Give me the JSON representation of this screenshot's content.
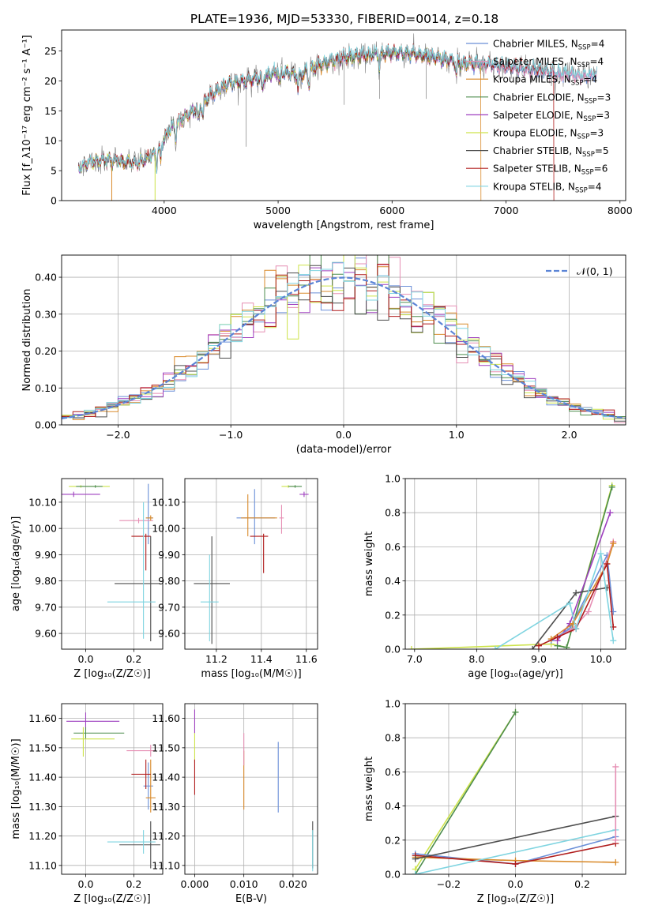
{
  "title": "PLATE=1936, MJD=53330, FIBERID=0014, z=0.18",
  "colors": {
    "Chabrier MILES": "#6a8fd8",
    "Salpeter MILES": "#e68fb4",
    "Kroupa MILES": "#d98a2a",
    "Chabrier ELODIE": "#4c8c4c",
    "Salpeter ELODIE": "#9e3fbf",
    "Kroupa ELODIE": "#cde34a",
    "Chabrier STELIB": "#4d4d4d",
    "Salpeter STELIB": "#b01c1c",
    "Kroupa STELIB": "#7fd4e0",
    "data": "#808080",
    "normal": "#5b84d6"
  },
  "legend_models": [
    {
      "name": "Chabrier MILES",
      "nssp": "4"
    },
    {
      "name": "Salpeter MILES",
      "nssp": "4"
    },
    {
      "name": "Kroupa MILES",
      "nssp": "4"
    },
    {
      "name": "Chabrier ELODIE",
      "nssp": "3"
    },
    {
      "name": "Salpeter ELODIE",
      "nssp": "3"
    },
    {
      "name": "Kroupa ELODIE",
      "nssp": "3"
    },
    {
      "name": "Chabrier STELIB",
      "nssp": "5"
    },
    {
      "name": "Salpeter STELIB",
      "nssp": "6"
    },
    {
      "name": "Kroupa STELIB",
      "nssp": "4"
    }
  ],
  "chart_data": [
    {
      "id": "spectrum",
      "type": "line",
      "xlabel": "wavelength [Angstrom, rest frame]",
      "ylabel": "Flux [f_λ10⁻¹⁷ erg cm⁻² s⁻¹ A⁻¹]",
      "xlim": [
        3100,
        8050
      ],
      "ylim": [
        0,
        28.5
      ],
      "xticks": [
        4000,
        5000,
        6000,
        7000,
        8000
      ],
      "yticks": [
        0,
        5,
        10,
        15,
        20,
        25
      ],
      "continuum": [
        [
          3250,
          5.5
        ],
        [
          3350,
          6.5
        ],
        [
          3500,
          6.8
        ],
        [
          3650,
          6.5
        ],
        [
          3750,
          6.2
        ],
        [
          3850,
          7.0
        ],
        [
          3950,
          8.5
        ],
        [
          4050,
          12.0
        ],
        [
          4150,
          13.5
        ],
        [
          4300,
          15.5
        ],
        [
          4400,
          17.5
        ],
        [
          4550,
          19.5
        ],
        [
          4700,
          20.0
        ],
        [
          4850,
          20.5
        ],
        [
          5000,
          21.5
        ],
        [
          5200,
          21.0
        ],
        [
          5400,
          23.0
        ],
        [
          5600,
          24.0
        ],
        [
          5800,
          24.3
        ],
        [
          6000,
          24.8
        ],
        [
          6200,
          24.5
        ],
        [
          6400,
          23.8
        ],
        [
          6600,
          23.0
        ],
        [
          6800,
          22.8
        ],
        [
          7000,
          22.5
        ],
        [
          7200,
          22.0
        ],
        [
          7400,
          21.5
        ],
        [
          7600,
          21.0
        ],
        [
          7800,
          21.0
        ]
      ],
      "legend": "top-right"
    },
    {
      "id": "residuals",
      "type": "line",
      "xlabel": "(data-model)/error",
      "ylabel": "Normed distribution",
      "xlim": [
        -2.5,
        2.5
      ],
      "ylim": [
        0,
        0.46
      ],
      "xticks": [
        -2,
        -1,
        0,
        1,
        2
      ],
      "yticks": [
        0.0,
        0.1,
        0.2,
        0.3,
        0.4
      ],
      "legend_label": "𝒩(0, 1)",
      "histogram_bins": [
        -2.5,
        2.5,
        50
      ]
    },
    {
      "id": "age_vs_Z",
      "type": "scatter",
      "xlabel": "Z [log₁₀(Z/Z☉)]",
      "ylabel": "age  [log₁₀(age/yr)]",
      "xlim": [
        -0.1,
        0.32
      ],
      "ylim": [
        9.54,
        10.19
      ],
      "xticks": [
        0.0,
        0.2
      ],
      "yticks": [
        9.6,
        9.7,
        9.8,
        9.9,
        10.0,
        10.1
      ],
      "points": [
        {
          "model": "Salpeter ELODIE",
          "x": -0.05,
          "y": 10.13,
          "xerr": [
            0.12,
            0.11
          ],
          "yerr": [
            0.01,
            0.01
          ]
        },
        {
          "model": "Kroupa ELODIE",
          "x": -0.02,
          "y": 10.16,
          "xerr": [
            0.05,
            0.12
          ],
          "yerr": [
            0.005,
            0.005
          ]
        },
        {
          "model": "Chabrier ELODIE",
          "x": 0.04,
          "y": 10.16,
          "xerr": [
            0.08,
            0.03
          ],
          "yerr": [
            0.005,
            0.005
          ]
        },
        {
          "model": "Chabrier MILES",
          "x": 0.26,
          "y": 10.04,
          "xerr": [
            0.01,
            0.02
          ],
          "yerr": [
            0.1,
            0.13
          ]
        },
        {
          "model": "Salpeter MILES",
          "x": 0.22,
          "y": 10.03,
          "xerr": [
            0.08,
            0.06
          ],
          "yerr": [
            0.01,
            0.01
          ]
        },
        {
          "model": "Kroupa MILES",
          "x": 0.27,
          "y": 10.04,
          "xerr": [
            0.02,
            0.01
          ],
          "yerr": [
            0.01,
            0.01
          ]
        },
        {
          "model": "Salpeter STELIB",
          "x": 0.25,
          "y": 9.97,
          "xerr": [
            0.06,
            0.02
          ],
          "yerr": [
            0.13,
            0.01
          ]
        },
        {
          "model": "Chabrier STELIB",
          "x": 0.27,
          "y": 9.79,
          "xerr": [
            0.15,
            0.04
          ],
          "yerr": [
            0.22,
            0.18
          ]
        },
        {
          "model": "Kroupa STELIB",
          "x": 0.24,
          "y": 9.72,
          "xerr": [
            0.15,
            0.05
          ],
          "yerr": [
            0.14,
            0.38
          ]
        }
      ]
    },
    {
      "id": "age_vs_mass",
      "type": "scatter",
      "xlabel": "mass [log₁₀(M/M☉)]",
      "ylabel": "",
      "xlim": [
        11.06,
        11.65
      ],
      "ylim": [
        9.54,
        10.19
      ],
      "xticks": [
        11.2,
        11.4,
        11.6
      ],
      "yticks": [
        9.6,
        9.7,
        9.8,
        9.9,
        10.0,
        10.1
      ],
      "points": [
        {
          "model": "Salpeter ELODIE",
          "x": 11.59,
          "y": 10.13,
          "xerr": [
            0.02,
            0.02
          ],
          "yerr": [
            0.01,
            0.01
          ]
        },
        {
          "model": "Kroupa ELODIE",
          "x": 11.52,
          "y": 10.16,
          "xerr": [
            0.03,
            0.03
          ],
          "yerr": [
            0.005,
            0.005
          ]
        },
        {
          "model": "Chabrier ELODIE",
          "x": 11.55,
          "y": 10.16,
          "xerr": [
            0.03,
            0.03
          ],
          "yerr": [
            0.005,
            0.005
          ]
        },
        {
          "model": "Chabrier MILES",
          "x": 11.37,
          "y": 10.04,
          "xerr": [
            0.08,
            0.09
          ],
          "yerr": [
            0.1,
            0.11
          ]
        },
        {
          "model": "Salpeter MILES",
          "x": 11.49,
          "y": 10.04,
          "xerr": [
            0.01,
            0.01
          ],
          "yerr": [
            0.06,
            0.05
          ]
        },
        {
          "model": "Kroupa MILES",
          "x": 11.34,
          "y": 10.04,
          "xerr": [
            0.03,
            0.13
          ],
          "yerr": [
            0.07,
            0.09
          ]
        },
        {
          "model": "Salpeter STELIB",
          "x": 11.41,
          "y": 9.97,
          "xerr": [
            0.06,
            0.02
          ],
          "yerr": [
            0.14,
            0.01
          ]
        },
        {
          "model": "Chabrier STELIB",
          "x": 11.18,
          "y": 9.79,
          "xerr": [
            0.08,
            0.08
          ],
          "yerr": [
            0.23,
            0.18
          ]
        },
        {
          "model": "Kroupa STELIB",
          "x": 11.17,
          "y": 9.72,
          "xerr": [
            0.04,
            0.04
          ],
          "yerr": [
            0.15,
            0.18
          ]
        }
      ]
    },
    {
      "id": "weight_vs_age",
      "type": "line",
      "xlabel": "age  [log₁₀(age/yr)]",
      "ylabel": "mass weight",
      "xlim": [
        6.85,
        10.4
      ],
      "ylim": [
        0,
        1.0
      ],
      "xticks": [
        7,
        8,
        9,
        10
      ],
      "yticks": [
        0.0,
        0.2,
        0.4,
        0.6,
        0.8,
        1.0
      ],
      "series": [
        {
          "model": "Kroupa ELODIE",
          "x": [
            6.95,
            9.2,
            9.45,
            10.18
          ],
          "y": [
            0.0,
            0.03,
            0.01,
            0.96
          ]
        },
        {
          "model": "Chabrier ELODIE",
          "x": [
            9.3,
            9.45,
            10.18
          ],
          "y": [
            0.02,
            0.01,
            0.95
          ]
        },
        {
          "model": "Salpeter ELODIE",
          "x": [
            9.3,
            9.5,
            10.15
          ],
          "y": [
            0.05,
            0.15,
            0.8
          ]
        },
        {
          "model": "Chabrier MILES",
          "x": [
            9.2,
            9.5,
            10.1,
            10.2
          ],
          "y": [
            0.05,
            0.12,
            0.55,
            0.22
          ]
        },
        {
          "model": "Salpeter MILES",
          "x": [
            9.3,
            9.55,
            9.8,
            10.2
          ],
          "y": [
            0.07,
            0.12,
            0.22,
            0.63
          ]
        },
        {
          "model": "Kroupa MILES",
          "x": [
            9.2,
            9.55,
            10.1,
            10.2
          ],
          "y": [
            0.06,
            0.15,
            0.5,
            0.62
          ]
        },
        {
          "model": "Chabrier STELIB",
          "x": [
            8.9,
            9.6,
            10.1
          ],
          "y": [
            0.0,
            0.33,
            0.36
          ]
        },
        {
          "model": "Salpeter STELIB",
          "x": [
            9.0,
            9.3,
            9.6,
            10.1,
            10.2
          ],
          "y": [
            0.02,
            0.07,
            0.12,
            0.5,
            0.13
          ]
        },
        {
          "model": "Kroupa STELIB",
          "x": [
            8.3,
            9.5,
            9.6,
            10.0,
            10.2
          ],
          "y": [
            0.0,
            0.27,
            0.12,
            0.56,
            0.05
          ]
        }
      ]
    },
    {
      "id": "mass_vs_Z",
      "type": "scatter",
      "xlabel": "Z [log₁₀(Z/Z☉)]",
      "ylabel": "mass [log₁₀(M/M☉)]",
      "xlim": [
        -0.1,
        0.32
      ],
      "ylim": [
        11.07,
        11.65
      ],
      "xticks": [
        0.0,
        0.2
      ],
      "yticks": [
        11.1,
        11.2,
        11.3,
        11.4,
        11.5,
        11.6
      ],
      "points": [
        {
          "model": "Salpeter ELODIE",
          "x": 0.0,
          "y": 11.59,
          "xerr": [
            0.08,
            0.14
          ],
          "yerr": [
            0.03,
            0.03
          ]
        },
        {
          "model": "Chabrier ELODIE",
          "x": 0.0,
          "y": 11.55,
          "xerr": [
            0.05,
            0.16
          ],
          "yerr": [
            0.02,
            0.02
          ]
        },
        {
          "model": "Kroupa ELODIE",
          "x": -0.01,
          "y": 11.53,
          "xerr": [
            0.05,
            0.13
          ],
          "yerr": [
            0.06,
            0.04
          ]
        },
        {
          "model": "Salpeter MILES",
          "x": 0.27,
          "y": 11.49,
          "xerr": [
            0.1,
            0.02
          ],
          "yerr": [
            0.02,
            0.02
          ]
        },
        {
          "model": "Chabrier MILES",
          "x": 0.26,
          "y": 11.37,
          "xerr": [
            0.02,
            0.02
          ],
          "yerr": [
            0.08,
            0.08
          ]
        },
        {
          "model": "Kroupa MILES",
          "x": 0.27,
          "y": 11.33,
          "xerr": [
            0.02,
            0.02
          ],
          "yerr": [
            0.05,
            0.13
          ]
        },
        {
          "model": "Salpeter STELIB",
          "x": 0.25,
          "y": 11.41,
          "xerr": [
            0.06,
            0.02
          ],
          "yerr": [
            0.05,
            0.05
          ]
        },
        {
          "model": "Chabrier STELIB",
          "x": 0.27,
          "y": 11.17,
          "xerr": [
            0.13,
            0.04
          ],
          "yerr": [
            0.08,
            0.08
          ]
        },
        {
          "model": "Kroupa STELIB",
          "x": 0.24,
          "y": 11.18,
          "xerr": [
            0.15,
            0.05
          ],
          "yerr": [
            0.04,
            0.04
          ]
        }
      ]
    },
    {
      "id": "mass_vs_EBV",
      "type": "scatter",
      "xlabel": "E(B-V)",
      "ylabel": "",
      "xlim": [
        -0.002,
        0.025
      ],
      "ylim": [
        11.07,
        11.65
      ],
      "xticks": [
        0.0,
        0.01,
        0.02
      ],
      "yticks": [
        11.1,
        11.2,
        11.3,
        11.4,
        11.5,
        11.6
      ],
      "points": [
        {
          "model": "Salpeter ELODIE",
          "x": 0.0,
          "y": 11.59,
          "xerr": [
            0,
            0
          ],
          "yerr": [
            0.04,
            0.04
          ]
        },
        {
          "model": "Kroupa ELODIE",
          "x": 0.0,
          "y": 11.5,
          "xerr": [
            0,
            0
          ],
          "yerr": [
            0.05,
            0.05
          ]
        },
        {
          "model": "Salpeter STELIB",
          "x": 0.0,
          "y": 11.39,
          "xerr": [
            0,
            0
          ],
          "yerr": [
            0.05,
            0.07
          ]
        },
        {
          "model": "Kroupa MILES",
          "x": 0.01,
          "y": 11.39,
          "xerr": [
            0,
            0
          ],
          "yerr": [
            0.1,
            0.1
          ]
        },
        {
          "model": "Salpeter MILES",
          "x": 0.01,
          "y": 11.5,
          "xerr": [
            0,
            0
          ],
          "yerr": [
            0.06,
            0.05
          ]
        },
        {
          "model": "Chabrier MILES",
          "x": 0.017,
          "y": 11.4,
          "xerr": [
            0,
            0
          ],
          "yerr": [
            0.12,
            0.12
          ]
        },
        {
          "model": "Chabrier STELIB",
          "x": 0.024,
          "y": 11.17,
          "xerr": [
            0,
            0
          ],
          "yerr": [
            0.08,
            0.08
          ]
        },
        {
          "model": "Kroupa STELIB",
          "x": 0.024,
          "y": 11.15,
          "xerr": [
            0,
            0
          ],
          "yerr": [
            0.07,
            0.07
          ]
        }
      ]
    },
    {
      "id": "weight_vs_Z",
      "type": "line",
      "xlabel": "Z [log₁₀(Z/Z☉)]",
      "ylabel": "mass weight",
      "xlim": [
        -0.33,
        0.33
      ],
      "ylim": [
        0,
        1.0
      ],
      "xticks": [
        -0.2,
        0.0,
        0.2
      ],
      "yticks": [
        0.0,
        0.2,
        0.4,
        0.6,
        0.8,
        1.0
      ],
      "series": [
        {
          "model": "Kroupa ELODIE",
          "x": [
            -0.3,
            0.0
          ],
          "y": [
            0.03,
            0.95
          ]
        },
        {
          "model": "Chabrier ELODIE",
          "x": [
            -0.3,
            0.0
          ],
          "y": [
            0.0,
            0.95
          ]
        },
        {
          "model": "Chabrier MILES",
          "x": [
            -0.3,
            0.0,
            0.3
          ],
          "y": [
            0.12,
            0.06,
            0.22
          ]
        },
        {
          "model": "Kroupa MILES",
          "x": [
            -0.3,
            0.0,
            0.3
          ],
          "y": [
            0.1,
            0.08,
            0.07
          ]
        },
        {
          "model": "Salpeter STELIB",
          "x": [
            -0.3,
            0.0,
            0.3
          ],
          "y": [
            0.11,
            0.06,
            0.18
          ]
        },
        {
          "model": "Chabrier STELIB",
          "x": [
            -0.3,
            0.3
          ],
          "y": [
            0.09,
            0.34
          ]
        },
        {
          "model": "Kroupa STELIB",
          "x": [
            -0.3,
            0.3
          ],
          "y": [
            0.0,
            0.26
          ]
        },
        {
          "model": "Salpeter MILES",
          "x": [
            0.3,
            0.3
          ],
          "y": [
            0.2,
            0.63
          ]
        }
      ]
    }
  ]
}
